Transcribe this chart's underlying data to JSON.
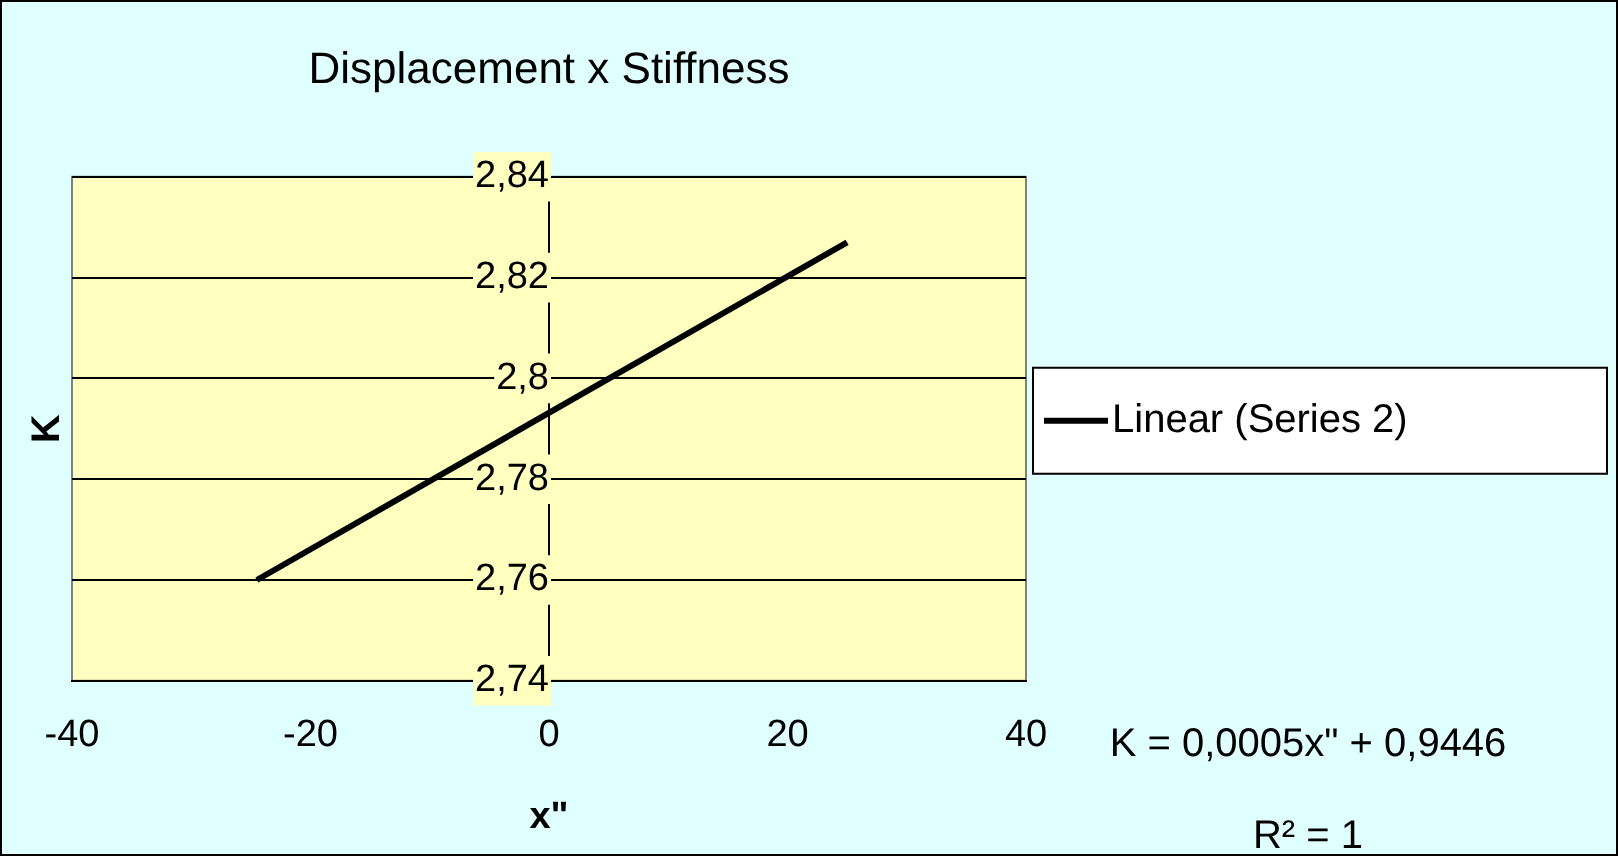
{
  "chart_data": {
    "type": "line",
    "title": "Displacement x Stiffness",
    "xlabel": "x\"",
    "ylabel": "K",
    "x": [
      -24.5,
      25
    ],
    "series": [
      {
        "name": "Linear (Series 2)",
        "color": "#000000",
        "values": [
          2.76,
          2.827
        ]
      }
    ],
    "xlim": [
      -40,
      40
    ],
    "xticks": [
      -40,
      -20,
      0,
      20,
      40
    ],
    "ylim": [
      2.74,
      2.84
    ],
    "yticks": [
      {
        "value": 2.74,
        "label": "2,74"
      },
      {
        "value": 2.76,
        "label": "2,76"
      },
      {
        "value": 2.78,
        "label": "2,78"
      },
      {
        "value": 2.8,
        "label": "2,8"
      },
      {
        "value": 2.82,
        "label": "2,82"
      },
      {
        "value": 2.84,
        "label": "2,84"
      }
    ],
    "grid": "y",
    "legend": "right",
    "marker": "none",
    "line_style": "solid",
    "annotations": [
      "K = 0,0005x\" + 0,9446",
      "R² = 1"
    ]
  }
}
